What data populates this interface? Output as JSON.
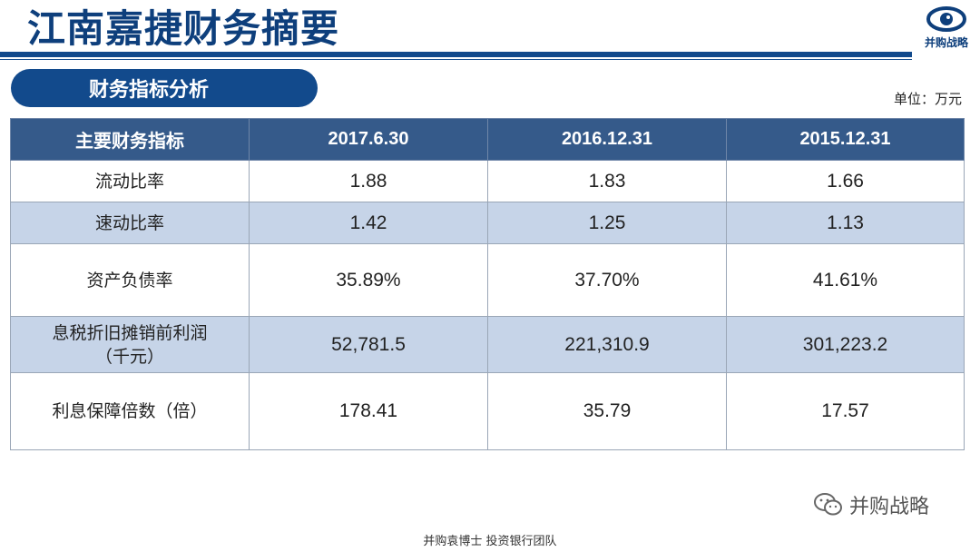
{
  "header": {
    "title": "江南嘉捷财务摘要",
    "logo_text": "并购战略"
  },
  "section": {
    "title": "财务指标分析",
    "unit": "单位：万元"
  },
  "table": {
    "columns": [
      "主要财务指标",
      "2017.6.30",
      "2016.12.31",
      "2015.12.31"
    ],
    "rows": [
      {
        "label": "流动比率",
        "label2": "",
        "values": [
          "1.88",
          "1.83",
          "1.66"
        ]
      },
      {
        "label": "速动比率",
        "label2": "",
        "values": [
          "1.42",
          "1.25",
          "1.13"
        ]
      },
      {
        "label": "资产负债率",
        "label2": "",
        "values": [
          "35.89%",
          "37.70%",
          "41.61%"
        ]
      },
      {
        "label": "息税折旧摊销前利润",
        "label2": "（千元）",
        "values": [
          "52,781.5",
          "221,310.9",
          "301,223.2"
        ]
      },
      {
        "label": "利息保障倍数（倍）",
        "label2": "",
        "values": [
          "178.41",
          "35.79",
          "17.57"
        ]
      }
    ]
  },
  "watermark": {
    "text": "并购战略",
    "icon": "wechat-icon"
  },
  "footer": {
    "text": "并购袁博士 投资银行团队"
  },
  "colors": {
    "brand": "#124a8c",
    "header_row": "#355a8a",
    "band_row": "#c6d4e8"
  }
}
